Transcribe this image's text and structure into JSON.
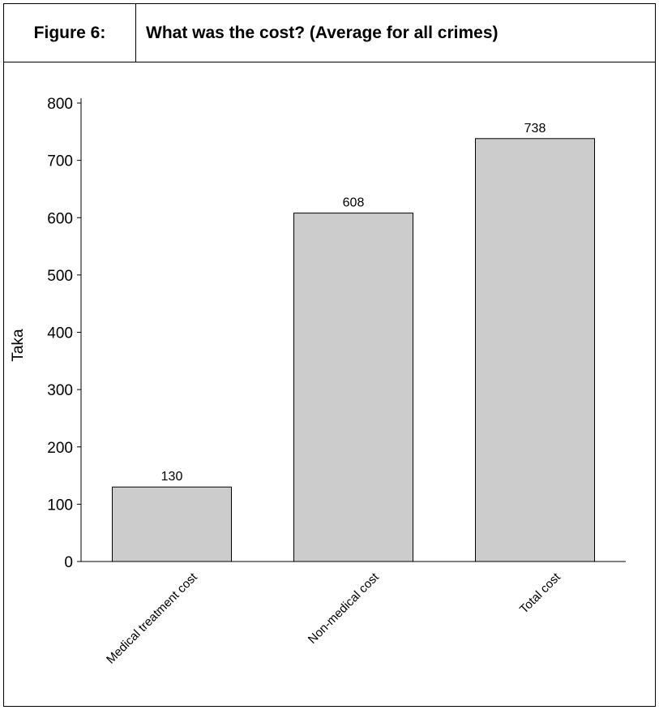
{
  "figure": {
    "label": "Figure 6:",
    "title": "What was the cost? (Average for all crimes)"
  },
  "chart_data": {
    "type": "bar",
    "categories": [
      "Medical treatment cost",
      "Non-medical cost",
      "Total cost"
    ],
    "values": [
      130,
      608,
      738
    ],
    "data_labels": [
      "130",
      "608",
      "738"
    ],
    "ylabel": "Taka",
    "xlabel": "",
    "ylim": [
      0,
      800
    ],
    "yticks": [
      0,
      100,
      200,
      300,
      400,
      500,
      600,
      700,
      800
    ],
    "grid": false,
    "legend": "none",
    "bar_color": "#cccccc",
    "edge_color": "#000000"
  }
}
